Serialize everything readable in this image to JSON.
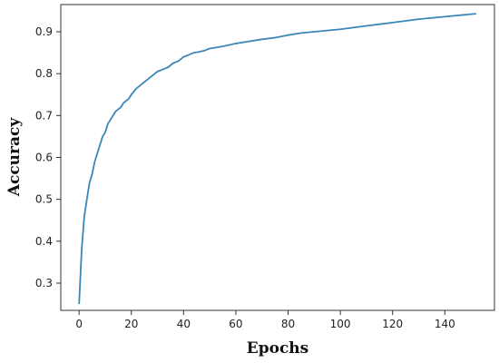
{
  "chart_data": {
    "type": "line",
    "title": "",
    "xlabel": "Epochs",
    "ylabel": "Accuracy",
    "xlim": [
      -7,
      159
    ],
    "ylim": [
      0.235,
      0.965
    ],
    "x_ticks": [
      0,
      20,
      40,
      60,
      80,
      100,
      120,
      140
    ],
    "y_ticks": [
      0.3,
      0.4,
      0.5,
      0.6,
      0.7,
      0.8,
      0.9
    ],
    "grid": false,
    "legend": "none",
    "series": [
      {
        "color": "#3a87b8",
        "x": [
          0,
          1,
          2,
          3,
          4,
          5,
          6,
          7,
          8,
          9,
          10,
          11,
          12,
          13,
          14,
          15,
          16,
          17,
          18,
          19,
          20,
          22,
          24,
          26,
          28,
          30,
          32,
          34,
          36,
          38,
          40,
          42,
          44,
          46,
          48,
          50,
          55,
          60,
          65,
          70,
          75,
          80,
          85,
          90,
          95,
          100,
          105,
          110,
          115,
          120,
          125,
          130,
          135,
          140,
          145,
          150,
          152
        ],
        "y": [
          0.25,
          0.38,
          0.46,
          0.5,
          0.54,
          0.56,
          0.59,
          0.61,
          0.63,
          0.65,
          0.66,
          0.68,
          0.69,
          0.7,
          0.71,
          0.715,
          0.72,
          0.73,
          0.735,
          0.74,
          0.75,
          0.765,
          0.775,
          0.785,
          0.795,
          0.805,
          0.81,
          0.815,
          0.825,
          0.83,
          0.84,
          0.845,
          0.85,
          0.852,
          0.855,
          0.86,
          0.865,
          0.872,
          0.877,
          0.882,
          0.886,
          0.892,
          0.897,
          0.9,
          0.903,
          0.906,
          0.91,
          0.914,
          0.918,
          0.922,
          0.926,
          0.93,
          0.933,
          0.936,
          0.939,
          0.942,
          0.943
        ]
      }
    ]
  }
}
